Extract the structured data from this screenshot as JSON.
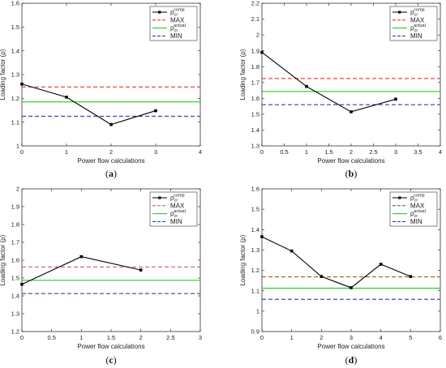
{
  "chart_data": [
    {
      "type": "line",
      "panel_label": {
        "open": "(",
        "letter": "a",
        "close": ")"
      },
      "xlabel": "Power flow calculations",
      "ylabel": "Loading factor (ρ)",
      "xlim": [
        0,
        4
      ],
      "ylim": [
        1,
        1.6
      ],
      "xticks": [
        0,
        1,
        2,
        3,
        4
      ],
      "xtick_labels": [
        "0",
        "1",
        "2",
        "3",
        "4"
      ],
      "yticks": [
        1,
        1.1,
        1.2,
        1.3,
        1.4,
        1.5,
        1.6
      ],
      "ytick_labels": [
        "1",
        "1.1",
        "1.2",
        "1.3",
        "1.4",
        "1.5",
        "1.6"
      ],
      "series": [
        {
          "name": "ρcrcomp",
          "x": [
            0,
            1,
            2,
            3
          ],
          "values": [
            1.26,
            1.205,
            1.09,
            1.148
          ],
          "color": "#000000"
        }
      ],
      "hlines": [
        {
          "name": "MAX",
          "value": 1.248,
          "color": "#e41a1c",
          "dash": true
        },
        {
          "name": "ρcractual",
          "value": 1.185,
          "color": "#00cc00",
          "dash": false
        },
        {
          "name": "MIN",
          "value": 1.125,
          "color": "#1f1faa",
          "dash": true
        }
      ],
      "legend": [
        {
          "base": "ρ",
          "sub": "cr",
          "sup": "comp"
        },
        {
          "base": "MAX",
          "sub": "",
          "sup": ""
        },
        {
          "base": "ρ",
          "sub": "cr",
          "sup": "actual"
        },
        {
          "base": "MIN",
          "sub": "",
          "sup": ""
        }
      ],
      "legend_position": "top-right",
      "grid": false
    },
    {
      "type": "line",
      "panel_label": {
        "open": "(",
        "letter": "b",
        "close": ")"
      },
      "xlabel": "Power flow calculations",
      "ylabel": "Loading factor (ρ)",
      "xlim": [
        0,
        4
      ],
      "ylim": [
        1.3,
        2.2
      ],
      "xticks": [
        0,
        0.5,
        1,
        1.5,
        2,
        2.5,
        3,
        3.5,
        4
      ],
      "xtick_labels": [
        "0",
        "0.5",
        "1",
        "1.5",
        "2",
        "2.5",
        "3",
        "3.5",
        "4"
      ],
      "yticks": [
        1.3,
        1.4,
        1.5,
        1.6,
        1.7,
        1.8,
        1.9,
        2,
        2.1,
        2.2
      ],
      "ytick_labels": [
        "1.3",
        "1.4",
        "1.5",
        "1.6",
        "1.7",
        "1.8",
        "1.9",
        "2",
        "2.1",
        "2.2"
      ],
      "series": [
        {
          "name": "ρcrcomp",
          "x": [
            0,
            1,
            2,
            3
          ],
          "values": [
            1.89,
            1.675,
            1.515,
            1.595
          ],
          "color": "#000000"
        }
      ],
      "hlines": [
        {
          "name": "MAX",
          "value": 1.725,
          "color": "#e41a1c",
          "dash": true
        },
        {
          "name": "ρcractual",
          "value": 1.643,
          "color": "#00cc00",
          "dash": false
        },
        {
          "name": "MIN",
          "value": 1.56,
          "color": "#1f1faa",
          "dash": true
        }
      ],
      "legend": [
        {
          "base": "ρ",
          "sub": "cr",
          "sup": "comp"
        },
        {
          "base": "MAX",
          "sub": "",
          "sup": ""
        },
        {
          "base": "ρ",
          "sub": "cr",
          "sup": "actual"
        },
        {
          "base": "MIN",
          "sub": "",
          "sup": ""
        }
      ],
      "legend_position": "top-right",
      "grid": false
    },
    {
      "type": "line",
      "panel_label": {
        "open": "(",
        "letter": "c",
        "close": ")"
      },
      "xlabel": "Power flow calculations",
      "ylabel": "Loading factor (ρ)",
      "xlim": [
        0,
        3
      ],
      "ylim": [
        1.2,
        2
      ],
      "xticks": [
        0,
        0.5,
        1,
        1.5,
        2,
        2.5,
        3
      ],
      "xtick_labels": [
        "0",
        "0.5",
        "1",
        "1.5",
        "2",
        "2.5",
        "3"
      ],
      "yticks": [
        1.2,
        1.3,
        1.4,
        1.5,
        1.6,
        1.7,
        1.8,
        1.9,
        2
      ],
      "ytick_labels": [
        "1.2",
        "1.3",
        "1.4",
        "1.5",
        "1.6",
        "1.7",
        "1.8",
        "1.9",
        "2"
      ],
      "series": [
        {
          "name": "ρcrcomp",
          "x": [
            0,
            1,
            2
          ],
          "values": [
            1.465,
            1.62,
            1.545
          ],
          "color": "#000000"
        }
      ],
      "hlines": [
        {
          "name": "MAX",
          "value": 1.562,
          "color": "#c0504d",
          "dash": true
        },
        {
          "name": "ρcractual",
          "value": 1.487,
          "color": "#22bb22",
          "dash": false
        },
        {
          "name": "MIN",
          "value": 1.413,
          "color": "#2a2a8a",
          "dash": true
        }
      ],
      "legend": [
        {
          "base": "ρ",
          "sub": "cr",
          "sup": "comp"
        },
        {
          "base": "MAX",
          "sub": "",
          "sup": ""
        },
        {
          "base": "ρ",
          "sub": "cr",
          "sup": "actual"
        },
        {
          "base": "MIN",
          "sub": "",
          "sup": ""
        }
      ],
      "legend_position": "top-right",
      "grid": false
    },
    {
      "type": "line",
      "panel_label": {
        "open": "(",
        "letter": "d",
        "close": ")"
      },
      "xlabel": "Power flow calculations",
      "ylabel": "Loading factor (ρ)",
      "xlim": [
        0,
        6
      ],
      "ylim": [
        0.9,
        1.6
      ],
      "xticks": [
        0,
        1,
        2,
        3,
        4,
        5,
        6
      ],
      "xtick_labels": [
        "0",
        "1",
        "2",
        "3",
        "4",
        "5",
        "6"
      ],
      "yticks": [
        0.9,
        1,
        1.1,
        1.2,
        1.3,
        1.4,
        1.5,
        1.6
      ],
      "ytick_labels": [
        "0.9",
        "1",
        "1.1",
        "1.2",
        "1.3",
        "1.4",
        "1.5",
        "1.6"
      ],
      "series": [
        {
          "name": "ρcrcomp",
          "x": [
            0,
            1,
            2,
            3,
            4,
            5
          ],
          "values": [
            1.365,
            1.295,
            1.17,
            1.115,
            1.23,
            1.17
          ],
          "color": "#000000"
        }
      ],
      "hlines": [
        {
          "name": "MAX",
          "value": 1.168,
          "color": "#8b4513",
          "dash": true
        },
        {
          "name": "ρcractual",
          "value": 1.113,
          "color": "#00cc00",
          "dash": false
        },
        {
          "name": "MIN",
          "value": 1.058,
          "color": "#1f1faa",
          "dash": true
        }
      ],
      "legend": [
        {
          "base": "ρ",
          "sub": "cr",
          "sup": "comp"
        },
        {
          "base": "MAX",
          "sub": "",
          "sup": ""
        },
        {
          "base": "ρ",
          "sub": "cr",
          "sup": "actual"
        },
        {
          "base": "MIN",
          "sub": "",
          "sup": ""
        }
      ],
      "legend_position": "top-right",
      "grid": false
    }
  ]
}
